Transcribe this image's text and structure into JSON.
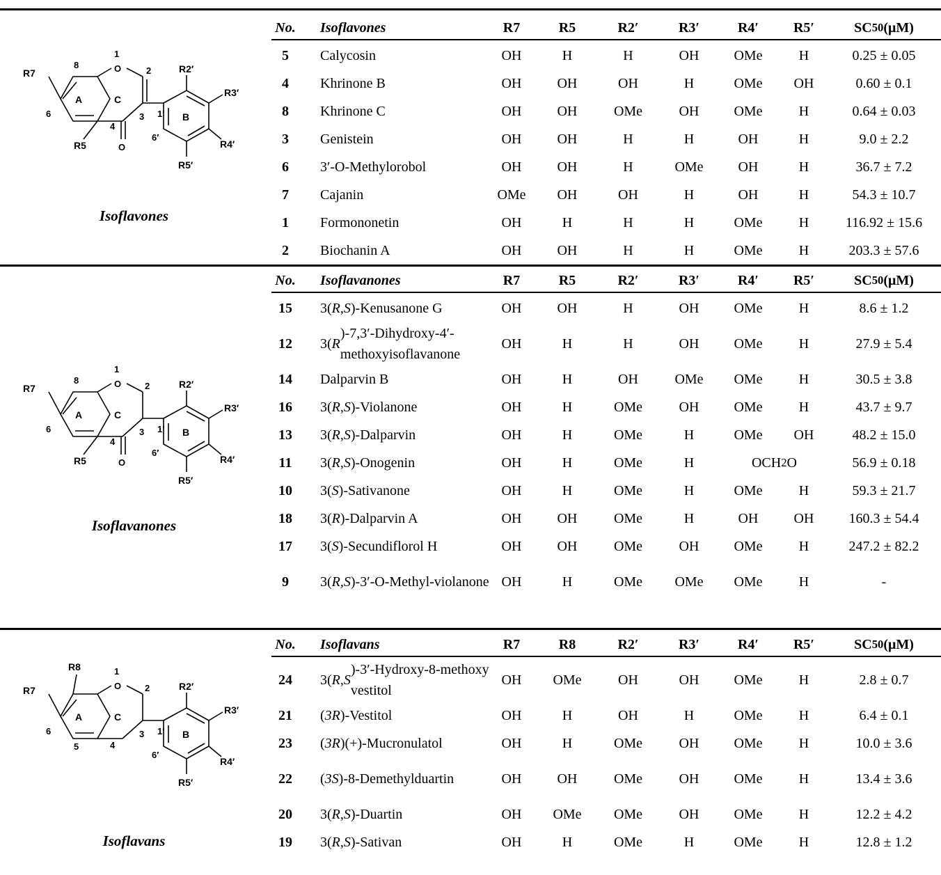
{
  "sections": [
    {
      "class_label": "Isoflavones",
      "header": {
        "no": "No.",
        "name": "Isoflavones",
        "c1": "R7",
        "c2": "R5",
        "c3": "R2′",
        "c4": "R3′",
        "c5": "R4′",
        "c6": "R5′",
        "sc_label": "SC",
        "sc_sub": "50",
        "sc_unit": " (μM)"
      },
      "rows": [
        {
          "no": "5",
          "name": "Calycosin",
          "c1": "OH",
          "c2": "H",
          "c3": "H",
          "c4": "OH",
          "c5": "OMe",
          "c6": "H",
          "sc": "0.25 ± 0.05"
        },
        {
          "no": "4",
          "name": "Khrinone B",
          "c1": "OH",
          "c2": "OH",
          "c3": "OH",
          "c4": "H",
          "c5": "OMe",
          "c6": "OH",
          "sc": "0.60 ± 0.1"
        },
        {
          "no": "8",
          "name": "Khrinone C",
          "c1": "OH",
          "c2": "OH",
          "c3": "OMe",
          "c4": "OH",
          "c5": "OMe",
          "c6": "H",
          "sc": "0.64 ± 0.03"
        },
        {
          "no": "3",
          "name": "Genistein",
          "c1": "OH",
          "c2": "OH",
          "c3": "H",
          "c4": "H",
          "c5": "OH",
          "c6": "H",
          "sc": "9.0 ± 2.2"
        },
        {
          "no": "6",
          "name": "3′-O-Methylorobol",
          "c1": "OH",
          "c2": "OH",
          "c3": "H",
          "c4": "OMe",
          "c5": "OH",
          "c6": "H",
          "sc": "36.7 ± 7.2"
        },
        {
          "no": "7",
          "name": "Cajanin",
          "c1": "OMe",
          "c2": "OH",
          "c3": "OH",
          "c4": "H",
          "c5": "OH",
          "c6": "H",
          "sc": "54.3 ± 10.7"
        },
        {
          "no": "1",
          "name": "Formononetin",
          "c1": "OH",
          "c2": "H",
          "c3": "H",
          "c4": "H",
          "c5": "OMe",
          "c6": "H",
          "sc": "116.92 ± 15.6"
        },
        {
          "no": "2",
          "name": "Biochanin A",
          "c1": "OH",
          "c2": "OH",
          "c3": "H",
          "c4": "H",
          "c5": "OMe",
          "c6": "H",
          "sc": "203.3 ± 57.6"
        }
      ]
    },
    {
      "class_label": "Isoflavanones",
      "header": {
        "no": "No.",
        "name": "Isoflavanones",
        "c1": "R7",
        "c2": "R5",
        "c3": "R2′",
        "c4": "R3′",
        "c5": "R4′",
        "c6": "R5′",
        "sc_label": "SC",
        "sc_sub": "50",
        "sc_unit": " (μM)"
      },
      "rows": [
        {
          "no": "15",
          "name": "3(R,S)-Kenusanone G",
          "c1": "OH",
          "c2": "OH",
          "c3": "H",
          "c4": "OH",
          "c5": "OMe",
          "c6": "H",
          "sc": "8.6 ± 1.2"
        },
        {
          "no": "12",
          "name": "3(R)-7,3′-Dihydroxy-4′-methoxyisoflavanone",
          "c1": "OH",
          "c2": "H",
          "c3": "H",
          "c4": "OH",
          "c5": "OMe",
          "c6": "H",
          "sc": "27.9 ± 5.4"
        },
        {
          "no": "14",
          "name": "Dalparvin B",
          "c1": "OH",
          "c2": "H",
          "c3": "OH",
          "c4": "OMe",
          "c5": "OMe",
          "c6": "H",
          "sc": "30.5 ± 3.8"
        },
        {
          "no": "16",
          "name": "3(R,S)-Violanone",
          "c1": "OH",
          "c2": "H",
          "c3": "OMe",
          "c4": "OH",
          "c5": "OMe",
          "c6": "H",
          "sc": "43.7 ± 9.7"
        },
        {
          "no": "13",
          "name": "3(R,S)-Dalparvin",
          "c1": "OH",
          "c2": "H",
          "c3": "OMe",
          "c4": "H",
          "c5": "OMe",
          "c6": "OH",
          "sc": "48.2 ± 15.0"
        },
        {
          "no": "11",
          "name": "3(R,S)-Onogenin",
          "c1": "OH",
          "c2": "H",
          "c3": "OMe",
          "c4": "H",
          "c56": "OCH2O",
          "sc": "56.9 ± 0.18"
        },
        {
          "no": "10",
          "name": "3(S)-Sativanone",
          "c1": "OH",
          "c2": "H",
          "c3": "OMe",
          "c4": "H",
          "c5": "OMe",
          "c6": "H",
          "sc": "59.3 ± 21.7"
        },
        {
          "no": "18",
          "name": "3(R)-Dalparvin A",
          "c1": "OH",
          "c2": "OH",
          "c3": "OMe",
          "c4": "H",
          "c5": "OH",
          "c6": "OH",
          "sc": "160.3 ± 54.4"
        },
        {
          "no": "17",
          "name": "3(S)-Secundiflorol H",
          "c1": "OH",
          "c2": "OH",
          "c3": "OMe",
          "c4": "OH",
          "c5": "OMe",
          "c6": "H",
          "sc": "247.2 ± 82.2"
        },
        {
          "no": "9",
          "name": "3(R,S)-3′-O-Methyl-violanone",
          "c1": "OH",
          "c2": "H",
          "c3": "OMe",
          "c4": "OMe",
          "c5": "OMe",
          "c6": "H",
          "sc": "-"
        }
      ]
    },
    {
      "class_label": "Isoflavans",
      "header": {
        "no": "No.",
        "name": "Isoflavans",
        "c1": "R7",
        "c2": "R8",
        "c3": "R2′",
        "c4": "R3′",
        "c5": "R4′",
        "c6": "R5′",
        "sc_label": "SC",
        "sc_sub": "50",
        "sc_unit": " (μM)"
      },
      "rows": [
        {
          "no": "24",
          "name": "3(R,S)-3′-Hydroxy-8-methoxy vestitol",
          "c1": "OH",
          "c2": "OMe",
          "c3": "OH",
          "c4": "OH",
          "c5": "OMe",
          "c6": "H",
          "sc": "2.8 ± 0.7"
        },
        {
          "no": "21",
          "name": "(3R)-Vestitol",
          "c1": "OH",
          "c2": "H",
          "c3": "OH",
          "c4": "H",
          "c5": "OMe",
          "c6": "H",
          "sc": "6.4 ± 0.1"
        },
        {
          "no": "23",
          "name": "(3R)(+)-Mucronulatol",
          "c1": "OH",
          "c2": "H",
          "c3": "OMe",
          "c4": "OH",
          "c5": "OMe",
          "c6": "H",
          "sc": "10.0 ± 3.6"
        },
        {
          "no": "22",
          "name": "(3S)-8-Demethylduartin",
          "c1": "OH",
          "c2": "OH",
          "c3": "OMe",
          "c4": "OH",
          "c5": "OMe",
          "c6": "H",
          "sc": "13.4 ± 3.6"
        },
        {
          "no": "20",
          "name": "3(R,S)-Duartin",
          "c1": "OH",
          "c2": "OMe",
          "c3": "OMe",
          "c4": "OH",
          "c5": "OMe",
          "c6": "H",
          "sc": "12.2 ± 4.2"
        },
        {
          "no": "19",
          "name": "3(R,S)-Sativan",
          "c1": "OH",
          "c2": "H",
          "c3": "OMe",
          "c4": "H",
          "c5": "OMe",
          "c6": "H",
          "sc": "12.8 ± 1.2"
        }
      ]
    }
  ],
  "structure_labels": {
    "isoflavone": [
      "R7",
      "8",
      "1",
      "2",
      "R2′",
      "A",
      "C",
      "R3′",
      "6",
      "4",
      "3",
      "1′",
      "B",
      "R5",
      "6′",
      "R4′",
      "R5′",
      "O",
      "O"
    ],
    "isoflavanone": [
      "R7",
      "8",
      "1",
      "2",
      "R2′",
      "A",
      "C",
      "R3′",
      "6",
      "4",
      "3",
      "1′",
      "B",
      "R5",
      "6′",
      "R4′",
      "R5′",
      "O",
      "O"
    ],
    "isoflavan": [
      "R8",
      "R7",
      "1",
      "2",
      "R2′",
      "A",
      "C",
      "R3′",
      "6",
      "5",
      "4",
      "3",
      "1′",
      "B",
      "6′",
      "R4′",
      "R5′",
      "O"
    ]
  }
}
